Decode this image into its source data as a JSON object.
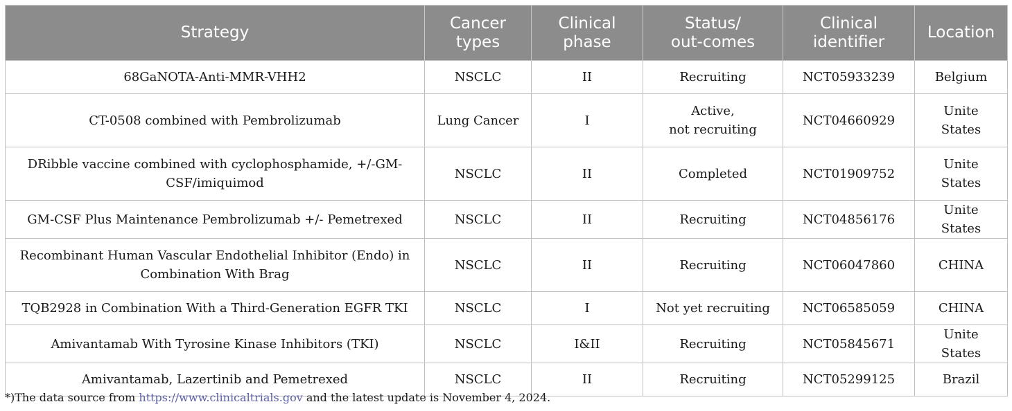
{
  "table": {
    "headers": [
      {
        "lines": [
          "Strategy"
        ]
      },
      {
        "lines": [
          "Cancer",
          "types"
        ]
      },
      {
        "lines": [
          "Clinical",
          "phase"
        ]
      },
      {
        "lines": [
          "Status/",
          "out-comes"
        ]
      },
      {
        "lines": [
          "Clinical",
          "identifier"
        ]
      },
      {
        "lines": [
          "Location"
        ]
      }
    ],
    "rows": [
      {
        "strategy": [
          "68GaNOTA-Anti-MMR-VHH2"
        ],
        "cancer": "NSCLC",
        "phase": "II",
        "status": [
          "Recruiting"
        ],
        "identifier": "NCT05933239",
        "location": "Belgium"
      },
      {
        "strategy": [
          "CT-0508 combined with Pembrolizumab"
        ],
        "cancer": "Lung Cancer",
        "phase": "I",
        "status": [
          "Active,",
          "not recruiting"
        ],
        "identifier": "NCT04660929",
        "location": "Unite States"
      },
      {
        "strategy": [
          "DRibble vaccine combined with cyclophosphamide, +/-GM-",
          "CSF/imiquimod"
        ],
        "cancer": "NSCLC",
        "phase": "II",
        "status": [
          "Completed"
        ],
        "identifier": "NCT01909752",
        "location": "Unite States"
      },
      {
        "strategy": [
          "GM-CSF Plus Maintenance Pembrolizumab +/- Pemetrexed"
        ],
        "cancer": "NSCLC",
        "phase": "II",
        "status": [
          "Recruiting"
        ],
        "identifier": "NCT04856176",
        "location": "Unite States"
      },
      {
        "strategy": [
          "Recombinant Human Vascular Endothelial Inhibitor (Endo) in",
          "Combination With Brag"
        ],
        "cancer": "NSCLC",
        "phase": "II",
        "status": [
          "Recruiting"
        ],
        "identifier": "NCT06047860",
        "location": "CHINA"
      },
      {
        "strategy": [
          "TQB2928 in Combination With a Third-Generation EGFR TKI"
        ],
        "cancer": "NSCLC",
        "phase": "I",
        "status": [
          "Not yet recruiting"
        ],
        "identifier": "NCT06585059",
        "location": "CHINA"
      },
      {
        "strategy": [
          "Amivantamab With Tyrosine Kinase Inhibitors (TKI)"
        ],
        "cancer": "NSCLC",
        "phase": "I&II",
        "status": [
          "Recruiting"
        ],
        "identifier": "NCT05845671",
        "location": "Unite States"
      },
      {
        "strategy": [
          "Amivantamab, Lazertinib and Pemetrexed"
        ],
        "cancer": "NSCLC",
        "phase": "II",
        "status": [
          "Recruiting"
        ],
        "identifier": "NCT05299125",
        "location": "Brazil"
      }
    ]
  },
  "footnote": {
    "prefix": "*)The data source from ",
    "link": "https://www.clinicaltrials.gov",
    "suffix": " and the latest update is November 4, 2024."
  },
  "colors": {
    "header_bg": "#8c8c8c",
    "header_text": "#ffffff",
    "link": "#5b5fa8"
  }
}
